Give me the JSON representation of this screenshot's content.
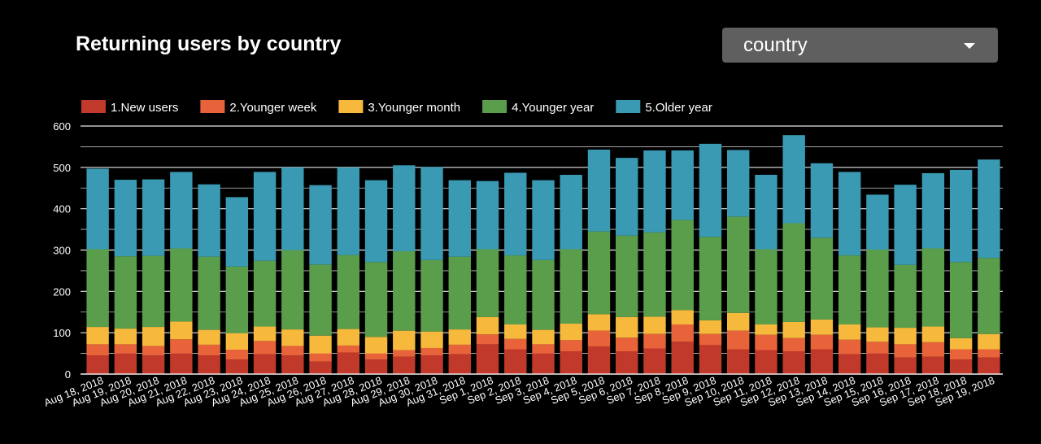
{
  "header": {
    "title": "Returning users by country",
    "dropdown_value": "country"
  },
  "colors": {
    "background": "#000000",
    "grid": "#ffffff",
    "series": [
      "#c0392b",
      "#e8623a",
      "#f6b93b",
      "#5a9e4c",
      "#3a9ab3"
    ]
  },
  "chart_data": {
    "type": "bar",
    "stacked": true,
    "title": "Returning users by country",
    "ylim": [
      0,
      600
    ],
    "yticks": [
      0,
      100,
      200,
      300,
      400,
      500,
      600
    ],
    "legend_position": "top-left",
    "grid": true,
    "categories": [
      "Aug 18, 2018",
      "Aug 19, 2018",
      "Aug 20, 2018",
      "Aug 21, 2018",
      "Aug 22, 2018",
      "Aug 23, 2018",
      "Aug 24, 2018",
      "Aug 25, 2018",
      "Aug 26, 2018",
      "Aug 27, 2018",
      "Aug 28, 2018",
      "Aug 29, 2018",
      "Aug 30, 2018",
      "Aug 31, 2018",
      "Sep 1, 2018",
      "Sep 2, 2018",
      "Sep 3, 2018",
      "Sep 4, 2018",
      "Sep 5, 2018",
      "Sep 6, 2018",
      "Sep 7, 2018",
      "Sep 8, 2018",
      "Sep 9, 2018",
      "Sep 10, 2018",
      "Sep 11, 2018",
      "Sep 12, 2018",
      "Sep 13, 2018",
      "Sep 14, 2018",
      "Sep 15, 2018",
      "Sep 16, 2018",
      "Sep 17, 2018",
      "Sep 18, 2018",
      "Sep 19, 2018"
    ],
    "series": [
      {
        "name": "1.New users",
        "values": [
          45,
          50,
          45,
          50,
          45,
          35,
          48,
          45,
          30,
          52,
          35,
          42,
          45,
          48,
          72,
          60,
          50,
          55,
          67,
          55,
          62,
          78,
          70,
          60,
          58,
          55,
          60,
          48,
          50,
          40,
          42,
          35,
          40
        ]
      },
      {
        "name": "2.Younger week",
        "values": [
          27,
          22,
          23,
          34,
          26,
          24,
          32,
          23,
          20,
          17,
          15,
          16,
          18,
          23,
          24,
          25,
          22,
          27,
          38,
          33,
          35,
          42,
          27,
          45,
          37,
          32,
          35,
          35,
          28,
          32,
          35,
          25,
          20
        ]
      },
      {
        "name": "3.Younger month",
        "values": [
          42,
          38,
          46,
          43,
          36,
          40,
          35,
          40,
          43,
          40,
          40,
          47,
          40,
          37,
          42,
          35,
          35,
          40,
          40,
          50,
          42,
          35,
          33,
          43,
          25,
          39,
          37,
          37,
          35,
          40,
          38,
          27,
          37
        ]
      },
      {
        "name": "4.Younger year",
        "values": [
          188,
          175,
          172,
          177,
          177,
          161,
          159,
          192,
          172,
          179,
          181,
          192,
          173,
          176,
          164,
          167,
          169,
          180,
          200,
          197,
          204,
          218,
          202,
          233,
          182,
          239,
          198,
          167,
          188,
          152,
          189,
          184,
          184
        ]
      },
      {
        "name": "5.Older year",
        "values": [
          195,
          185,
          185,
          185,
          175,
          168,
          215,
          200,
          192,
          212,
          198,
          208,
          225,
          185,
          165,
          200,
          193,
          180,
          198,
          188,
          198,
          168,
          225,
          161,
          180,
          213,
          180,
          202,
          133,
          194,
          182,
          223,
          238
        ]
      }
    ]
  }
}
